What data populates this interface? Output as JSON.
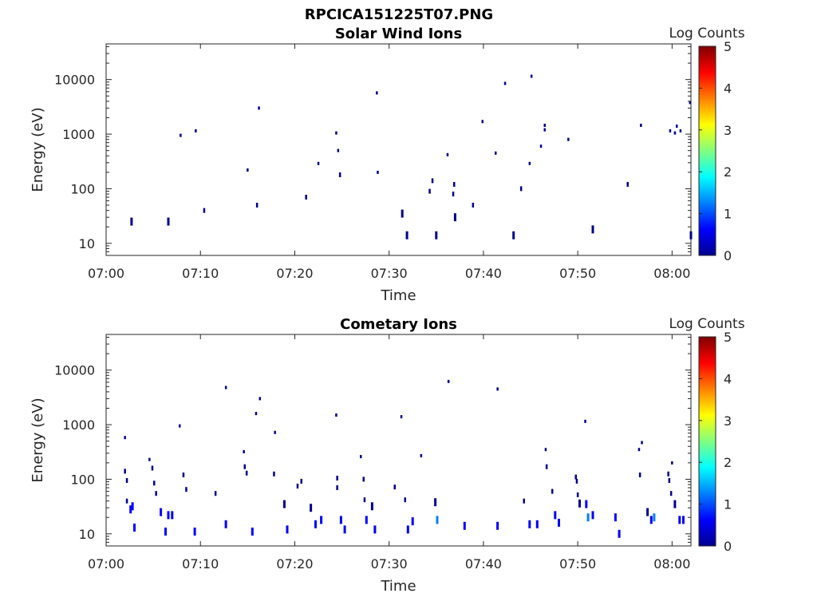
{
  "figure_title": "RPCICA151225T07.PNG",
  "colors": {
    "colormap": [
      "#00008f",
      "#0000ff",
      "#0080ff",
      "#00ffff",
      "#80ff80",
      "#ffff00",
      "#ff8000",
      "#ff0000",
      "#800000"
    ]
  },
  "chart_data": [
    {
      "type": "heatmap",
      "title": "Solar Wind Ions",
      "xlabel": "Time",
      "ylabel": "Energy (eV)",
      "x_ticks": [
        "07:00",
        "07:10",
        "07:20",
        "07:30",
        "07:40",
        "07:50",
        "08:00"
      ],
      "x_range_min": [
        0,
        62
      ],
      "y_scale": "log",
      "y_range": [
        6,
        45000
      ],
      "y_ticks": [
        "10",
        "100",
        "1000",
        "10000"
      ],
      "colorbar": {
        "label": "Log Counts",
        "range": [
          0,
          5
        ],
        "ticks": [
          "0",
          "1",
          "2",
          "3",
          "4",
          "5"
        ]
      },
      "points": [
        {
          "t": 2.7,
          "e": 25,
          "c": 0.3
        },
        {
          "t": 6.6,
          "e": 25,
          "c": 0.3
        },
        {
          "t": 7.9,
          "e": 950,
          "c": 0.3
        },
        {
          "t": 9.5,
          "e": 1150,
          "c": 0.3
        },
        {
          "t": 10.4,
          "e": 40,
          "c": 0.3
        },
        {
          "t": 15.0,
          "e": 220,
          "c": 0.3
        },
        {
          "t": 16.0,
          "e": 50,
          "c": 0.3
        },
        {
          "t": 16.2,
          "e": 3000,
          "c": 0.3
        },
        {
          "t": 21.2,
          "e": 70,
          "c": 0.3
        },
        {
          "t": 22.5,
          "e": 290,
          "c": 0.3
        },
        {
          "t": 24.4,
          "e": 1050,
          "c": 0.3
        },
        {
          "t": 24.6,
          "e": 500,
          "c": 0.3
        },
        {
          "t": 24.8,
          "e": 180,
          "c": 0.3
        },
        {
          "t": 28.7,
          "e": 5700,
          "c": 0.3
        },
        {
          "t": 28.8,
          "e": 200,
          "c": 0.3
        },
        {
          "t": 31.4,
          "e": 35,
          "c": 0.3
        },
        {
          "t": 31.9,
          "e": 14,
          "c": 0.3
        },
        {
          "t": 34.3,
          "e": 90,
          "c": 0.3
        },
        {
          "t": 34.6,
          "e": 140,
          "c": 0.3
        },
        {
          "t": 35.0,
          "e": 14,
          "c": 0.3
        },
        {
          "t": 36.2,
          "e": 420,
          "c": 0.3
        },
        {
          "t": 36.8,
          "e": 80,
          "c": 0.3
        },
        {
          "t": 36.9,
          "e": 120,
          "c": 0.3
        },
        {
          "t": 37.0,
          "e": 30,
          "c": 0.3
        },
        {
          "t": 38.9,
          "e": 50,
          "c": 0.3
        },
        {
          "t": 39.9,
          "e": 1700,
          "c": 0.3
        },
        {
          "t": 41.3,
          "e": 450,
          "c": 0.3
        },
        {
          "t": 42.3,
          "e": 8500,
          "c": 0.3
        },
        {
          "t": 43.2,
          "e": 14,
          "c": 0.3
        },
        {
          "t": 44.0,
          "e": 100,
          "c": 0.3
        },
        {
          "t": 44.9,
          "e": 290,
          "c": 0.3
        },
        {
          "t": 45.1,
          "e": 11500,
          "c": 0.3
        },
        {
          "t": 46.1,
          "e": 600,
          "c": 0.3
        },
        {
          "t": 46.5,
          "e": 1200,
          "c": 0.3
        },
        {
          "t": 46.5,
          "e": 1450,
          "c": 0.3
        },
        {
          "t": 49.0,
          "e": 800,
          "c": 0.3
        },
        {
          "t": 51.6,
          "e": 18,
          "c": 0.3
        },
        {
          "t": 55.3,
          "e": 120,
          "c": 0.3
        },
        {
          "t": 56.7,
          "e": 1450,
          "c": 0.3
        },
        {
          "t": 59.8,
          "e": 1150,
          "c": 0.3
        },
        {
          "t": 60.3,
          "e": 1050,
          "c": 0.3
        },
        {
          "t": 60.5,
          "e": 1400,
          "c": 0.3
        },
        {
          "t": 60.9,
          "e": 1150,
          "c": 0.3
        },
        {
          "t": 61.9,
          "e": 3800,
          "c": 0.3
        },
        {
          "t": 62.0,
          "e": 14,
          "c": 0.3
        }
      ]
    },
    {
      "type": "heatmap",
      "title": "Cometary Ions",
      "xlabel": "Time",
      "ylabel": "Energy (eV)",
      "x_ticks": [
        "07:00",
        "07:10",
        "07:20",
        "07:30",
        "07:40",
        "07:50",
        "08:00"
      ],
      "x_range_min": [
        0,
        62
      ],
      "y_scale": "log",
      "y_range": [
        6,
        45000
      ],
      "y_ticks": [
        "10",
        "100",
        "1000",
        "10000"
      ],
      "colorbar": {
        "label": "Log Counts",
        "range": [
          0,
          5
        ],
        "ticks": [
          "0",
          "1",
          "2",
          "3",
          "4",
          "5"
        ]
      },
      "points": [
        {
          "t": 2.0,
          "e": 580,
          "c": 0.3
        },
        {
          "t": 2.0,
          "e": 140,
          "c": 0.3
        },
        {
          "t": 2.2,
          "e": 95,
          "c": 0.3
        },
        {
          "t": 2.2,
          "e": 40,
          "c": 0.3
        },
        {
          "t": 2.6,
          "e": 28,
          "c": 0.4
        },
        {
          "t": 2.8,
          "e": 32,
          "c": 0.4
        },
        {
          "t": 3.0,
          "e": 13,
          "c": 0.4
        },
        {
          "t": 4.6,
          "e": 230,
          "c": 0.3
        },
        {
          "t": 4.9,
          "e": 160,
          "c": 0.3
        },
        {
          "t": 5.1,
          "e": 85,
          "c": 0.3
        },
        {
          "t": 5.3,
          "e": 55,
          "c": 0.3
        },
        {
          "t": 5.8,
          "e": 25,
          "c": 0.4
        },
        {
          "t": 6.3,
          "e": 11,
          "c": 0.4
        },
        {
          "t": 6.6,
          "e": 22,
          "c": 0.4
        },
        {
          "t": 7.0,
          "e": 22,
          "c": 0.4
        },
        {
          "t": 7.8,
          "e": 950,
          "c": 0.3
        },
        {
          "t": 8.2,
          "e": 120,
          "c": 0.3
        },
        {
          "t": 8.5,
          "e": 65,
          "c": 0.3
        },
        {
          "t": 9.4,
          "e": 11,
          "c": 0.4
        },
        {
          "t": 11.6,
          "e": 55,
          "c": 0.3
        },
        {
          "t": 12.7,
          "e": 4800,
          "c": 0.3
        },
        {
          "t": 12.7,
          "e": 15,
          "c": 0.4
        },
        {
          "t": 15.5,
          "e": 11,
          "c": 0.4
        },
        {
          "t": 14.6,
          "e": 320,
          "c": 0.3
        },
        {
          "t": 14.7,
          "e": 170,
          "c": 0.3
        },
        {
          "t": 14.9,
          "e": 130,
          "c": 0.3
        },
        {
          "t": 15.9,
          "e": 1600,
          "c": 0.3
        },
        {
          "t": 16.3,
          "e": 3000,
          "c": 0.3
        },
        {
          "t": 17.9,
          "e": 720,
          "c": 0.3
        },
        {
          "t": 17.8,
          "e": 125,
          "c": 0.3
        },
        {
          "t": 18.9,
          "e": 35,
          "c": 0.3
        },
        {
          "t": 19.2,
          "e": 12,
          "c": 0.4
        },
        {
          "t": 20.3,
          "e": 75,
          "c": 0.3
        },
        {
          "t": 20.7,
          "e": 92,
          "c": 0.3
        },
        {
          "t": 21.7,
          "e": 30,
          "c": 0.3
        },
        {
          "t": 22.2,
          "e": 15,
          "c": 0.4
        },
        {
          "t": 22.8,
          "e": 18,
          "c": 0.4
        },
        {
          "t": 24.4,
          "e": 1500,
          "c": 0.3
        },
        {
          "t": 24.5,
          "e": 105,
          "c": 0.3
        },
        {
          "t": 24.5,
          "e": 70,
          "c": 0.3
        },
        {
          "t": 24.9,
          "e": 18,
          "c": 0.4
        },
        {
          "t": 25.3,
          "e": 12,
          "c": 0.4
        },
        {
          "t": 27.0,
          "e": 260,
          "c": 0.3
        },
        {
          "t": 27.3,
          "e": 100,
          "c": 0.3
        },
        {
          "t": 27.4,
          "e": 42,
          "c": 0.3
        },
        {
          "t": 27.6,
          "e": 18,
          "c": 0.4
        },
        {
          "t": 28.2,
          "e": 32,
          "c": 0.3
        },
        {
          "t": 28.5,
          "e": 12,
          "c": 0.4
        },
        {
          "t": 30.6,
          "e": 72,
          "c": 0.3
        },
        {
          "t": 31.3,
          "e": 1400,
          "c": 0.3
        },
        {
          "t": 31.7,
          "e": 42,
          "c": 0.3
        },
        {
          "t": 32.0,
          "e": 12,
          "c": 0.4
        },
        {
          "t": 32.5,
          "e": 17,
          "c": 0.4
        },
        {
          "t": 33.4,
          "e": 270,
          "c": 0.3
        },
        {
          "t": 34.9,
          "e": 38,
          "c": 0.3
        },
        {
          "t": 35.1,
          "e": 18,
          "c": 1.1
        },
        {
          "t": 36.3,
          "e": 6200,
          "c": 0.3
        },
        {
          "t": 38.0,
          "e": 14,
          "c": 0.4
        },
        {
          "t": 41.5,
          "e": 4500,
          "c": 0.3
        },
        {
          "t": 41.5,
          "e": 14,
          "c": 0.4
        },
        {
          "t": 44.3,
          "e": 40,
          "c": 0.3
        },
        {
          "t": 44.9,
          "e": 15,
          "c": 0.4
        },
        {
          "t": 45.7,
          "e": 15,
          "c": 0.4
        },
        {
          "t": 46.6,
          "e": 350,
          "c": 0.3
        },
        {
          "t": 46.7,
          "e": 170,
          "c": 0.3
        },
        {
          "t": 47.3,
          "e": 60,
          "c": 0.3
        },
        {
          "t": 47.6,
          "e": 22,
          "c": 0.4
        },
        {
          "t": 48.0,
          "e": 16,
          "c": 0.4
        },
        {
          "t": 49.8,
          "e": 110,
          "c": 0.3
        },
        {
          "t": 49.9,
          "e": 92,
          "c": 0.3
        },
        {
          "t": 50.0,
          "e": 52,
          "c": 0.3
        },
        {
          "t": 50.2,
          "e": 36,
          "c": 0.3
        },
        {
          "t": 50.8,
          "e": 1150,
          "c": 0.3
        },
        {
          "t": 50.9,
          "e": 35,
          "c": 0.4
        },
        {
          "t": 51.1,
          "e": 20,
          "c": 1.1
        },
        {
          "t": 51.6,
          "e": 22,
          "c": 0.4
        },
        {
          "t": 54.0,
          "e": 20,
          "c": 0.4
        },
        {
          "t": 54.4,
          "e": 10,
          "c": 0.4
        },
        {
          "t": 56.5,
          "e": 350,
          "c": 0.3
        },
        {
          "t": 56.8,
          "e": 470,
          "c": 0.3
        },
        {
          "t": 56.6,
          "e": 120,
          "c": 0.3
        },
        {
          "t": 57.4,
          "e": 25,
          "c": 0.3
        },
        {
          "t": 57.8,
          "e": 18,
          "c": 0.4
        },
        {
          "t": 58.1,
          "e": 20,
          "c": 1.1
        },
        {
          "t": 59.6,
          "e": 125,
          "c": 0.3
        },
        {
          "t": 59.7,
          "e": 95,
          "c": 0.3
        },
        {
          "t": 59.9,
          "e": 55,
          "c": 0.3
        },
        {
          "t": 60.0,
          "e": 200,
          "c": 0.3
        },
        {
          "t": 60.3,
          "e": 35,
          "c": 0.3
        },
        {
          "t": 60.8,
          "e": 18,
          "c": 0.4
        },
        {
          "t": 61.2,
          "e": 18,
          "c": 0.4
        }
      ]
    }
  ]
}
